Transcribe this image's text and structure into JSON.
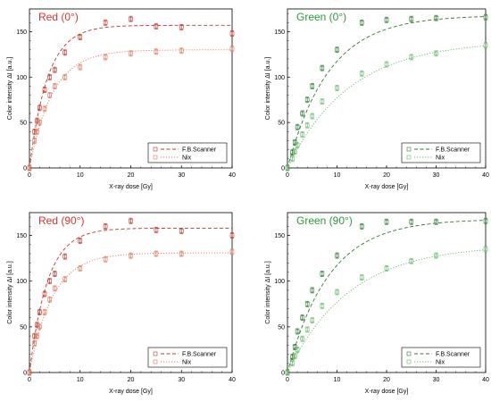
{
  "chart_data": [
    {
      "type": "scatter",
      "title": "Red (0°)",
      "title_color": "#d9342b",
      "xlabel": "X-ray dose [Gy]",
      "ylabel": "Color intensity ΔI [a.u.]",
      "xlim": [
        0,
        40
      ],
      "ylim": [
        0,
        175
      ],
      "xticks": [
        0,
        10,
        20,
        30,
        40
      ],
      "yticks": [
        0,
        50,
        100,
        150
      ],
      "legend_position": "bottom-right",
      "series": [
        {
          "name": "F.B.Scanner",
          "color": "#c0392b",
          "line_style": "dashed",
          "x": [
            0,
            1,
            1.5,
            2,
            3,
            4,
            5,
            7,
            10,
            15,
            20,
            25,
            30,
            40
          ],
          "y": [
            0,
            40,
            52,
            66,
            86,
            100,
            108,
            127,
            144,
            160,
            164,
            156,
            155,
            148
          ],
          "fit": {
            "ymax": 157,
            "k": 0.28
          }
        },
        {
          "name": "Nix",
          "color": "#e07a5f",
          "line_style": "dotted",
          "x": [
            0,
            1,
            1.5,
            2,
            3,
            4,
            5,
            7,
            10,
            15,
            20,
            25,
            30,
            40
          ],
          "y": [
            0,
            30,
            40,
            50,
            65,
            80,
            90,
            100,
            111,
            122,
            126,
            128,
            129,
            131
          ],
          "fit": {
            "ymax": 130,
            "k": 0.22
          }
        }
      ]
    },
    {
      "type": "scatter",
      "title": "Green (0°)",
      "title_color": "#2e9b3a",
      "xlabel": "X-ray dose [Gy]",
      "ylabel": "Color intensity ΔI [a.u.]",
      "xlim": [
        0,
        40
      ],
      "ylim": [
        0,
        175
      ],
      "xticks": [
        0,
        10,
        20,
        30,
        40
      ],
      "yticks": [
        0,
        50,
        100,
        150
      ],
      "legend_position": "bottom-right",
      "series": [
        {
          "name": "F.B.Scanner",
          "color": "#2e7d32",
          "line_style": "dashed",
          "x": [
            0,
            1,
            1.5,
            2,
            3,
            4,
            5,
            7,
            10,
            15,
            20,
            25,
            30,
            40
          ],
          "y": [
            0,
            17,
            28,
            45,
            60,
            75,
            90,
            110,
            130,
            160,
            163,
            164,
            165,
            166
          ],
          "fit": {
            "ymax": 168,
            "k": 0.12
          }
        },
        {
          "name": "Nix",
          "color": "#66bb6a",
          "line_style": "dotted",
          "x": [
            0,
            1,
            1.5,
            2,
            3,
            4,
            5,
            7,
            10,
            15,
            20,
            25,
            30,
            40
          ],
          "y": [
            0,
            10,
            18,
            25,
            37,
            47,
            57,
            73,
            88,
            104,
            114,
            122,
            126,
            135
          ],
          "fit": {
            "ymax": 140,
            "k": 0.08
          }
        }
      ]
    },
    {
      "type": "scatter",
      "title": "Red (90°)",
      "title_color": "#d9342b",
      "xlabel": "X-ray dose [Gy]",
      "ylabel": "Color intensity ΔI [a.u.]",
      "xlim": [
        0,
        40
      ],
      "ylim": [
        0,
        175
      ],
      "xticks": [
        0,
        10,
        20,
        30,
        40
      ],
      "yticks": [
        0,
        50,
        100,
        150
      ],
      "legend_position": "bottom-right",
      "series": [
        {
          "name": "F.B.Scanner",
          "color": "#c0392b",
          "line_style": "dashed",
          "x": [
            0,
            1,
            1.5,
            2,
            3,
            4,
            5,
            7,
            10,
            15,
            20,
            25,
            30,
            40
          ],
          "y": [
            0,
            40,
            52,
            66,
            86,
            100,
            108,
            127,
            144,
            160,
            166,
            156,
            155,
            150
          ],
          "fit": {
            "ymax": 158,
            "k": 0.28
          }
        },
        {
          "name": "Nix",
          "color": "#e07a5f",
          "line_style": "dotted",
          "x": [
            0,
            1,
            1.5,
            2,
            3,
            4,
            5,
            7,
            10,
            15,
            20,
            25,
            30,
            40
          ],
          "y": [
            0,
            32,
            40,
            50,
            66,
            80,
            92,
            102,
            114,
            124,
            128,
            130,
            130,
            132
          ],
          "fit": {
            "ymax": 131,
            "k": 0.22
          }
        }
      ]
    },
    {
      "type": "scatter",
      "title": "Green (90°)",
      "title_color": "#2e9b3a",
      "xlabel": "X-ray dose [Gy]",
      "ylabel": "Color intensity ΔI [a.u.]",
      "xlim": [
        0,
        40
      ],
      "ylim": [
        0,
        175
      ],
      "xticks": [
        0,
        10,
        20,
        30,
        40
      ],
      "yticks": [
        0,
        50,
        100,
        150
      ],
      "legend_position": "bottom-right",
      "series": [
        {
          "name": "F.B.Scanner",
          "color": "#2e7d32",
          "line_style": "dashed",
          "x": [
            0,
            1,
            1.5,
            2,
            3,
            4,
            5,
            7,
            10,
            15,
            20,
            25,
            30,
            40
          ],
          "y": [
            0,
            17,
            28,
            45,
            60,
            75,
            90,
            108,
            128,
            160,
            165,
            165,
            165,
            166
          ],
          "fit": {
            "ymax": 168,
            "k": 0.12
          }
        },
        {
          "name": "Nix",
          "color": "#66bb6a",
          "line_style": "dotted",
          "x": [
            0,
            1,
            1.5,
            2,
            3,
            4,
            5,
            7,
            10,
            15,
            20,
            25,
            30,
            40
          ],
          "y": [
            0,
            10,
            18,
            25,
            37,
            47,
            57,
            73,
            88,
            104,
            114,
            122,
            128,
            135
          ],
          "fit": {
            "ymax": 140,
            "k": 0.08
          }
        }
      ]
    }
  ]
}
